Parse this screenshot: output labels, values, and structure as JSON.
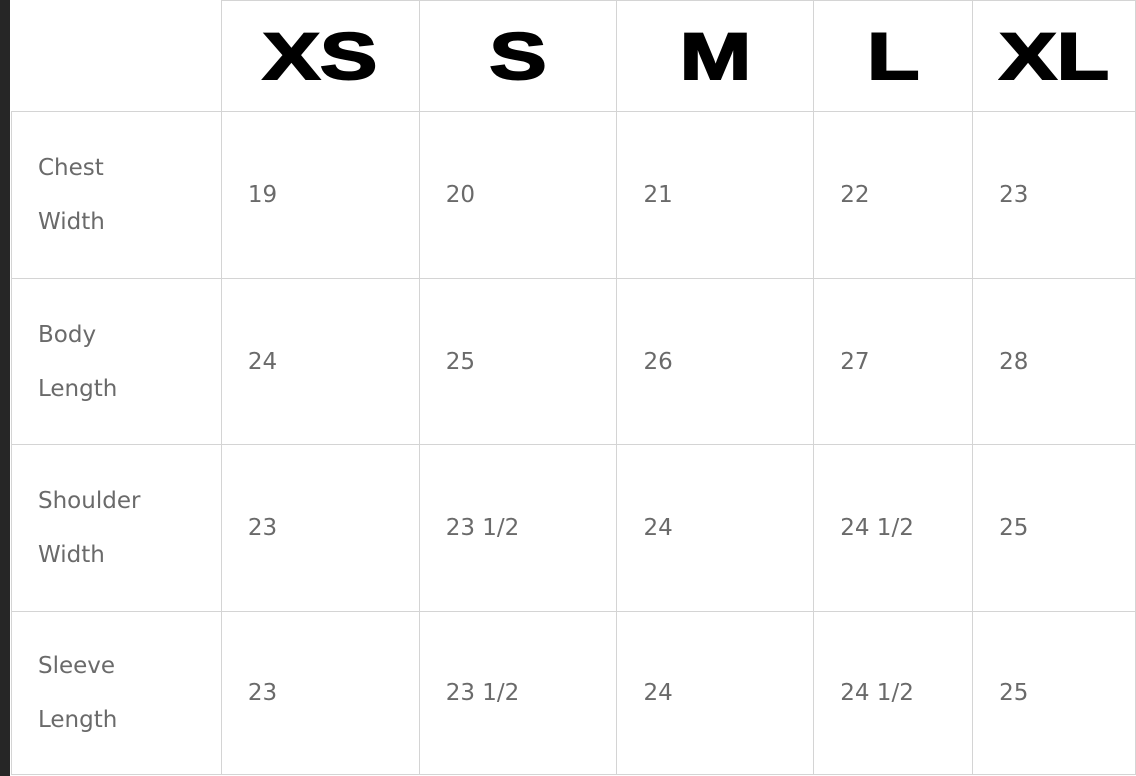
{
  "sizes": [
    "XS",
    "S",
    "M",
    "L",
    "XL"
  ],
  "rows": [
    {
      "label_line1": "Chest",
      "label_line2": "Width",
      "values": [
        "19",
        "20",
        "21",
        "22",
        "23"
      ]
    },
    {
      "label_line1": "Body",
      "label_line2": "Length",
      "values": [
        "24",
        "25",
        "26",
        "27",
        "28"
      ]
    },
    {
      "label_line1": "Shoulder",
      "label_line2": "Width",
      "values": [
        "23",
        "23 1/2",
        "24",
        "24 1/2",
        "25"
      ]
    },
    {
      "label_line1": "Sleeve",
      "label_line2": "Length",
      "values": [
        "23",
        "23 1/2",
        "24",
        "24 1/2",
        "25"
      ]
    }
  ]
}
